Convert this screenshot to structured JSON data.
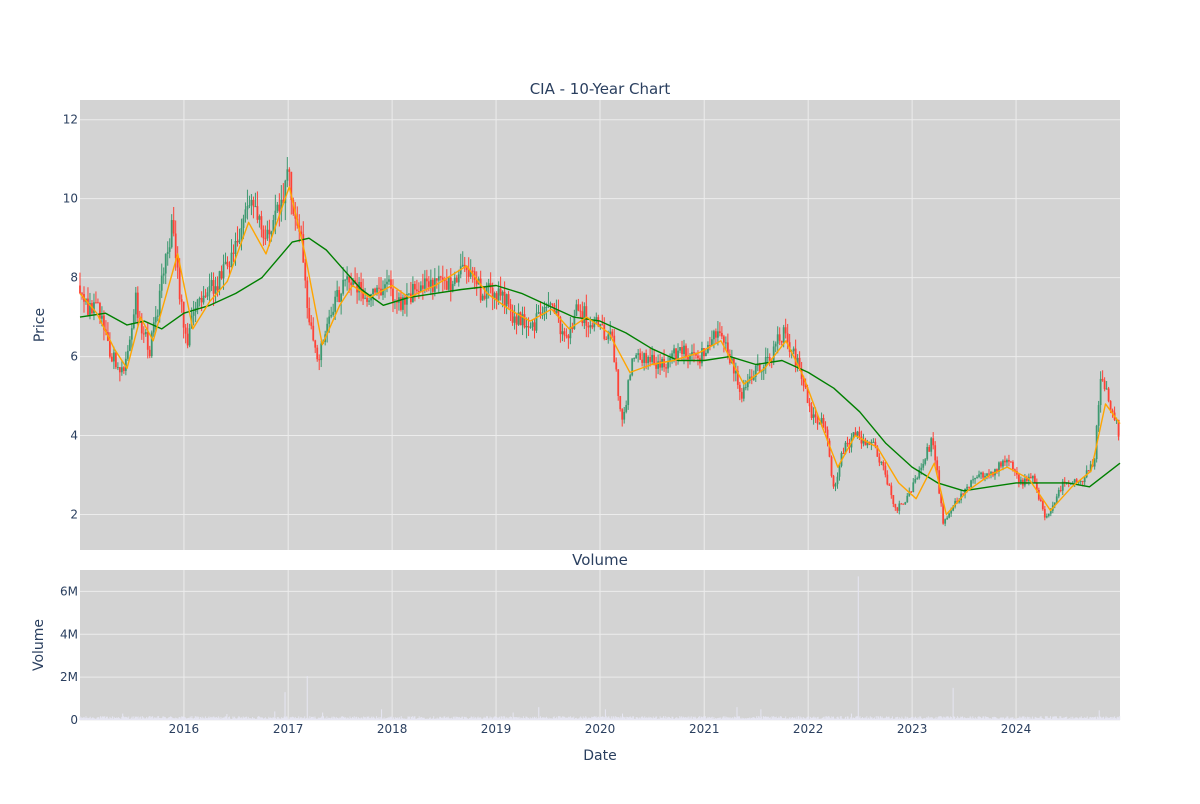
{
  "title": "CIA - 10-Year Chart",
  "colors": {
    "plot_bg": "#d3d3d3",
    "grid": "#ececec",
    "up": "#3d9970",
    "down": "#ff4136",
    "ma_short": "#ffa500",
    "ma_long": "#008000",
    "volume": "#e6e6f2",
    "text": "#2a3f5f"
  },
  "chart_data": [
    {
      "type": "candlestick",
      "title": "CIA - 10-Year Chart",
      "xlabel": "",
      "ylabel": "Price",
      "xlim": [
        "2015-01-01",
        "2024-12-31"
      ],
      "ylim": [
        1.1,
        12.5
      ],
      "ytick_values": [
        2,
        4,
        6,
        8,
        10,
        12
      ],
      "ytick_labels": [
        "2",
        "4",
        "6",
        "8",
        "10",
        "12"
      ],
      "grid": true,
      "legend": "none",
      "price_path": [
        [
          "2015-01-01",
          7.8
        ],
        [
          "2015-02-01",
          7.2
        ],
        [
          "2015-03-01",
          7.3
        ],
        [
          "2015-04-15",
          6.1
        ],
        [
          "2015-06-01",
          5.5
        ],
        [
          "2015-07-15",
          7.4
        ],
        [
          "2015-09-01",
          6.1
        ],
        [
          "2015-10-15",
          7.8
        ],
        [
          "2015-11-20",
          9.2
        ],
        [
          "2016-01-10",
          6.4
        ],
        [
          "2016-03-01",
          7.6
        ],
        [
          "2016-05-01",
          7.9
        ],
        [
          "2016-07-01",
          8.9
        ],
        [
          "2016-08-20",
          10.1
        ],
        [
          "2016-10-10",
          8.8
        ],
        [
          "2016-12-01",
          10.0
        ],
        [
          "2017-01-01",
          10.5
        ],
        [
          "2017-02-15",
          9.0
        ],
        [
          "2017-03-15",
          6.9
        ],
        [
          "2017-04-15",
          6.0
        ],
        [
          "2017-06-01",
          7.0
        ],
        [
          "2017-07-20",
          8.1
        ],
        [
          "2017-09-01",
          7.7
        ],
        [
          "2017-10-15",
          7.4
        ],
        [
          "2017-12-01",
          7.9
        ],
        [
          "2018-02-01",
          7.4
        ],
        [
          "2018-04-01",
          7.7
        ],
        [
          "2018-06-01",
          7.8
        ],
        [
          "2018-08-01",
          7.9
        ],
        [
          "2018-09-15",
          8.4
        ],
        [
          "2018-11-15",
          7.6
        ],
        [
          "2019-01-15",
          7.6
        ],
        [
          "2019-03-15",
          6.9
        ],
        [
          "2019-05-15",
          6.8
        ],
        [
          "2019-07-01",
          7.4
        ],
        [
          "2019-09-01",
          6.5
        ],
        [
          "2019-10-15",
          7.2
        ],
        [
          "2019-12-15",
          6.8
        ],
        [
          "2020-02-10",
          6.5
        ],
        [
          "2020-03-20",
          4.2
        ],
        [
          "2020-04-20",
          5.9
        ],
        [
          "2020-06-15",
          5.9
        ],
        [
          "2020-08-15",
          5.8
        ],
        [
          "2020-10-15",
          6.2
        ],
        [
          "2020-12-20",
          6.0
        ],
        [
          "2021-02-20",
          6.8
        ],
        [
          "2021-04-01",
          5.9
        ],
        [
          "2021-05-15",
          5.0
        ],
        [
          "2021-07-01",
          5.6
        ],
        [
          "2021-08-20",
          6.0
        ],
        [
          "2021-10-05",
          6.6
        ],
        [
          "2021-12-01",
          5.7
        ],
        [
          "2022-01-15",
          4.4
        ],
        [
          "2022-03-01",
          4.3
        ],
        [
          "2022-04-01",
          2.6
        ],
        [
          "2022-05-01",
          3.6
        ],
        [
          "2022-06-15",
          4.0
        ],
        [
          "2022-08-15",
          3.8
        ],
        [
          "2022-10-01",
          3.0
        ],
        [
          "2022-11-01",
          2.1
        ],
        [
          "2022-12-15",
          2.4
        ],
        [
          "2023-02-15",
          3.5
        ],
        [
          "2023-03-15",
          3.9
        ],
        [
          "2023-04-20",
          1.8
        ],
        [
          "2023-06-10",
          2.4
        ],
        [
          "2023-08-15",
          3.0
        ],
        [
          "2023-10-15",
          3.1
        ],
        [
          "2023-12-01",
          3.4
        ],
        [
          "2024-01-15",
          2.8
        ],
        [
          "2024-03-01",
          2.9
        ],
        [
          "2024-04-15",
          1.9
        ],
        [
          "2024-06-15",
          2.8
        ],
        [
          "2024-08-15",
          2.8
        ],
        [
          "2024-10-01",
          3.3
        ],
        [
          "2024-10-25",
          5.6
        ],
        [
          "2024-12-01",
          4.7
        ],
        [
          "2024-12-31",
          4.0
        ]
      ],
      "ma_short": [
        [
          "2015-01-01",
          7.6
        ],
        [
          "2015-03-01",
          7.1
        ],
        [
          "2015-05-01",
          6.2
        ],
        [
          "2015-06-15",
          5.7
        ],
        [
          "2015-08-01",
          7.0
        ],
        [
          "2015-09-15",
          6.4
        ],
        [
          "2015-11-01",
          7.6
        ],
        [
          "2015-12-10",
          8.6
        ],
        [
          "2016-02-01",
          6.7
        ],
        [
          "2016-04-01",
          7.4
        ],
        [
          "2016-06-01",
          7.9
        ],
        [
          "2016-08-15",
          9.4
        ],
        [
          "2016-10-15",
          8.6
        ],
        [
          "2017-01-05",
          10.3
        ],
        [
          "2017-03-01",
          8.6
        ],
        [
          "2017-05-01",
          6.3
        ],
        [
          "2017-07-01",
          7.3
        ],
        [
          "2017-08-15",
          7.8
        ],
        [
          "2017-10-15",
          7.5
        ],
        [
          "2018-01-01",
          7.8
        ],
        [
          "2018-03-01",
          7.5
        ],
        [
          "2018-06-01",
          7.8
        ],
        [
          "2018-09-20",
          8.3
        ],
        [
          "2018-12-01",
          7.6
        ],
        [
          "2019-02-15",
          7.2
        ],
        [
          "2019-05-01",
          6.9
        ],
        [
          "2019-07-15",
          7.2
        ],
        [
          "2019-09-15",
          6.7
        ],
        [
          "2019-11-15",
          7.0
        ],
        [
          "2020-02-01",
          6.6
        ],
        [
          "2020-04-15",
          5.6
        ],
        [
          "2020-07-01",
          5.8
        ],
        [
          "2020-09-15",
          5.9
        ],
        [
          "2020-12-15",
          6.1
        ],
        [
          "2021-03-01",
          6.4
        ],
        [
          "2021-05-20",
          5.3
        ],
        [
          "2021-08-01",
          5.7
        ],
        [
          "2021-10-15",
          6.4
        ],
        [
          "2021-12-15",
          5.5
        ],
        [
          "2022-02-15",
          4.3
        ],
        [
          "2022-04-15",
          3.2
        ],
        [
          "2022-06-15",
          4.0
        ],
        [
          "2022-09-01",
          3.7
        ],
        [
          "2022-11-15",
          2.8
        ],
        [
          "2023-01-15",
          2.4
        ],
        [
          "2023-03-20",
          3.3
        ],
        [
          "2023-05-01",
          2.0
        ],
        [
          "2023-07-15",
          2.6
        ],
        [
          "2023-10-01",
          3.0
        ],
        [
          "2023-12-01",
          3.2
        ],
        [
          "2024-02-15",
          2.9
        ],
        [
          "2024-05-01",
          2.1
        ],
        [
          "2024-07-15",
          2.7
        ],
        [
          "2024-09-20",
          3.1
        ],
        [
          "2024-11-10",
          4.8
        ],
        [
          "2024-12-31",
          4.3
        ]
      ],
      "ma_long": [
        [
          "2015-01-01",
          7.0
        ],
        [
          "2015-04-01",
          7.1
        ],
        [
          "2015-06-15",
          6.8
        ],
        [
          "2015-08-15",
          6.9
        ],
        [
          "2015-10-15",
          6.7
        ],
        [
          "2016-01-01",
          7.1
        ],
        [
          "2016-04-01",
          7.3
        ],
        [
          "2016-07-01",
          7.6
        ],
        [
          "2016-10-01",
          8.0
        ],
        [
          "2017-01-15",
          8.9
        ],
        [
          "2017-03-15",
          9.0
        ],
        [
          "2017-05-15",
          8.7
        ],
        [
          "2017-07-15",
          8.2
        ],
        [
          "2017-09-15",
          7.7
        ],
        [
          "2017-12-01",
          7.3
        ],
        [
          "2018-03-01",
          7.5
        ],
        [
          "2018-06-01",
          7.6
        ],
        [
          "2018-09-01",
          7.7
        ],
        [
          "2019-01-01",
          7.8
        ],
        [
          "2019-04-01",
          7.6
        ],
        [
          "2019-07-01",
          7.3
        ],
        [
          "2019-10-01",
          7.0
        ],
        [
          "2020-01-01",
          6.9
        ],
        [
          "2020-04-01",
          6.6
        ],
        [
          "2020-07-01",
          6.2
        ],
        [
          "2020-10-01",
          5.9
        ],
        [
          "2021-01-01",
          5.9
        ],
        [
          "2021-04-01",
          6.0
        ],
        [
          "2021-07-01",
          5.8
        ],
        [
          "2021-10-01",
          5.9
        ],
        [
          "2022-01-01",
          5.6
        ],
        [
          "2022-04-01",
          5.2
        ],
        [
          "2022-07-01",
          4.6
        ],
        [
          "2022-10-01",
          3.8
        ],
        [
          "2023-01-01",
          3.2
        ],
        [
          "2023-04-01",
          2.8
        ],
        [
          "2023-07-01",
          2.6
        ],
        [
          "2023-10-01",
          2.7
        ],
        [
          "2024-01-01",
          2.8
        ],
        [
          "2024-04-01",
          2.8
        ],
        [
          "2024-07-01",
          2.8
        ],
        [
          "2024-09-15",
          2.7
        ],
        [
          "2024-12-31",
          3.3
        ]
      ]
    },
    {
      "type": "bar",
      "title": "Volume",
      "xlabel": "Date",
      "ylabel": "Volume",
      "xlim": [
        "2015-01-01",
        "2024-12-31"
      ],
      "ylim": [
        0,
        7000000
      ],
      "ytick_values": [
        0,
        2000000,
        4000000,
        6000000
      ],
      "ytick_labels": [
        "0",
        "2M",
        "4M",
        "6M"
      ],
      "xtick_values": [
        "2016-01-01",
        "2017-01-01",
        "2018-01-01",
        "2019-01-01",
        "2020-01-01",
        "2021-01-01",
        "2022-01-01",
        "2023-01-01",
        "2024-01-01"
      ],
      "xtick_labels": [
        "2016",
        "2017",
        "2018",
        "2019",
        "2020",
        "2021",
        "2022",
        "2023",
        "2024"
      ],
      "grid": true,
      "baseline": 120000,
      "spikes": [
        [
          "2015-06-01",
          300000
        ],
        [
          "2016-06-01",
          280000
        ],
        [
          "2016-11-15",
          400000
        ],
        [
          "2016-12-20",
          1300000
        ],
        [
          "2017-03-10",
          2050000
        ],
        [
          "2017-05-01",
          350000
        ],
        [
          "2017-11-25",
          500000
        ],
        [
          "2019-03-01",
          350000
        ],
        [
          "2019-06-01",
          600000
        ],
        [
          "2020-01-20",
          500000
        ],
        [
          "2020-03-20",
          300000
        ],
        [
          "2021-04-25",
          600000
        ],
        [
          "2021-07-20",
          500000
        ],
        [
          "2022-06-01",
          300000
        ],
        [
          "2022-06-25",
          6700000
        ],
        [
          "2023-05-25",
          1500000
        ],
        [
          "2024-10-20",
          450000
        ]
      ]
    }
  ]
}
